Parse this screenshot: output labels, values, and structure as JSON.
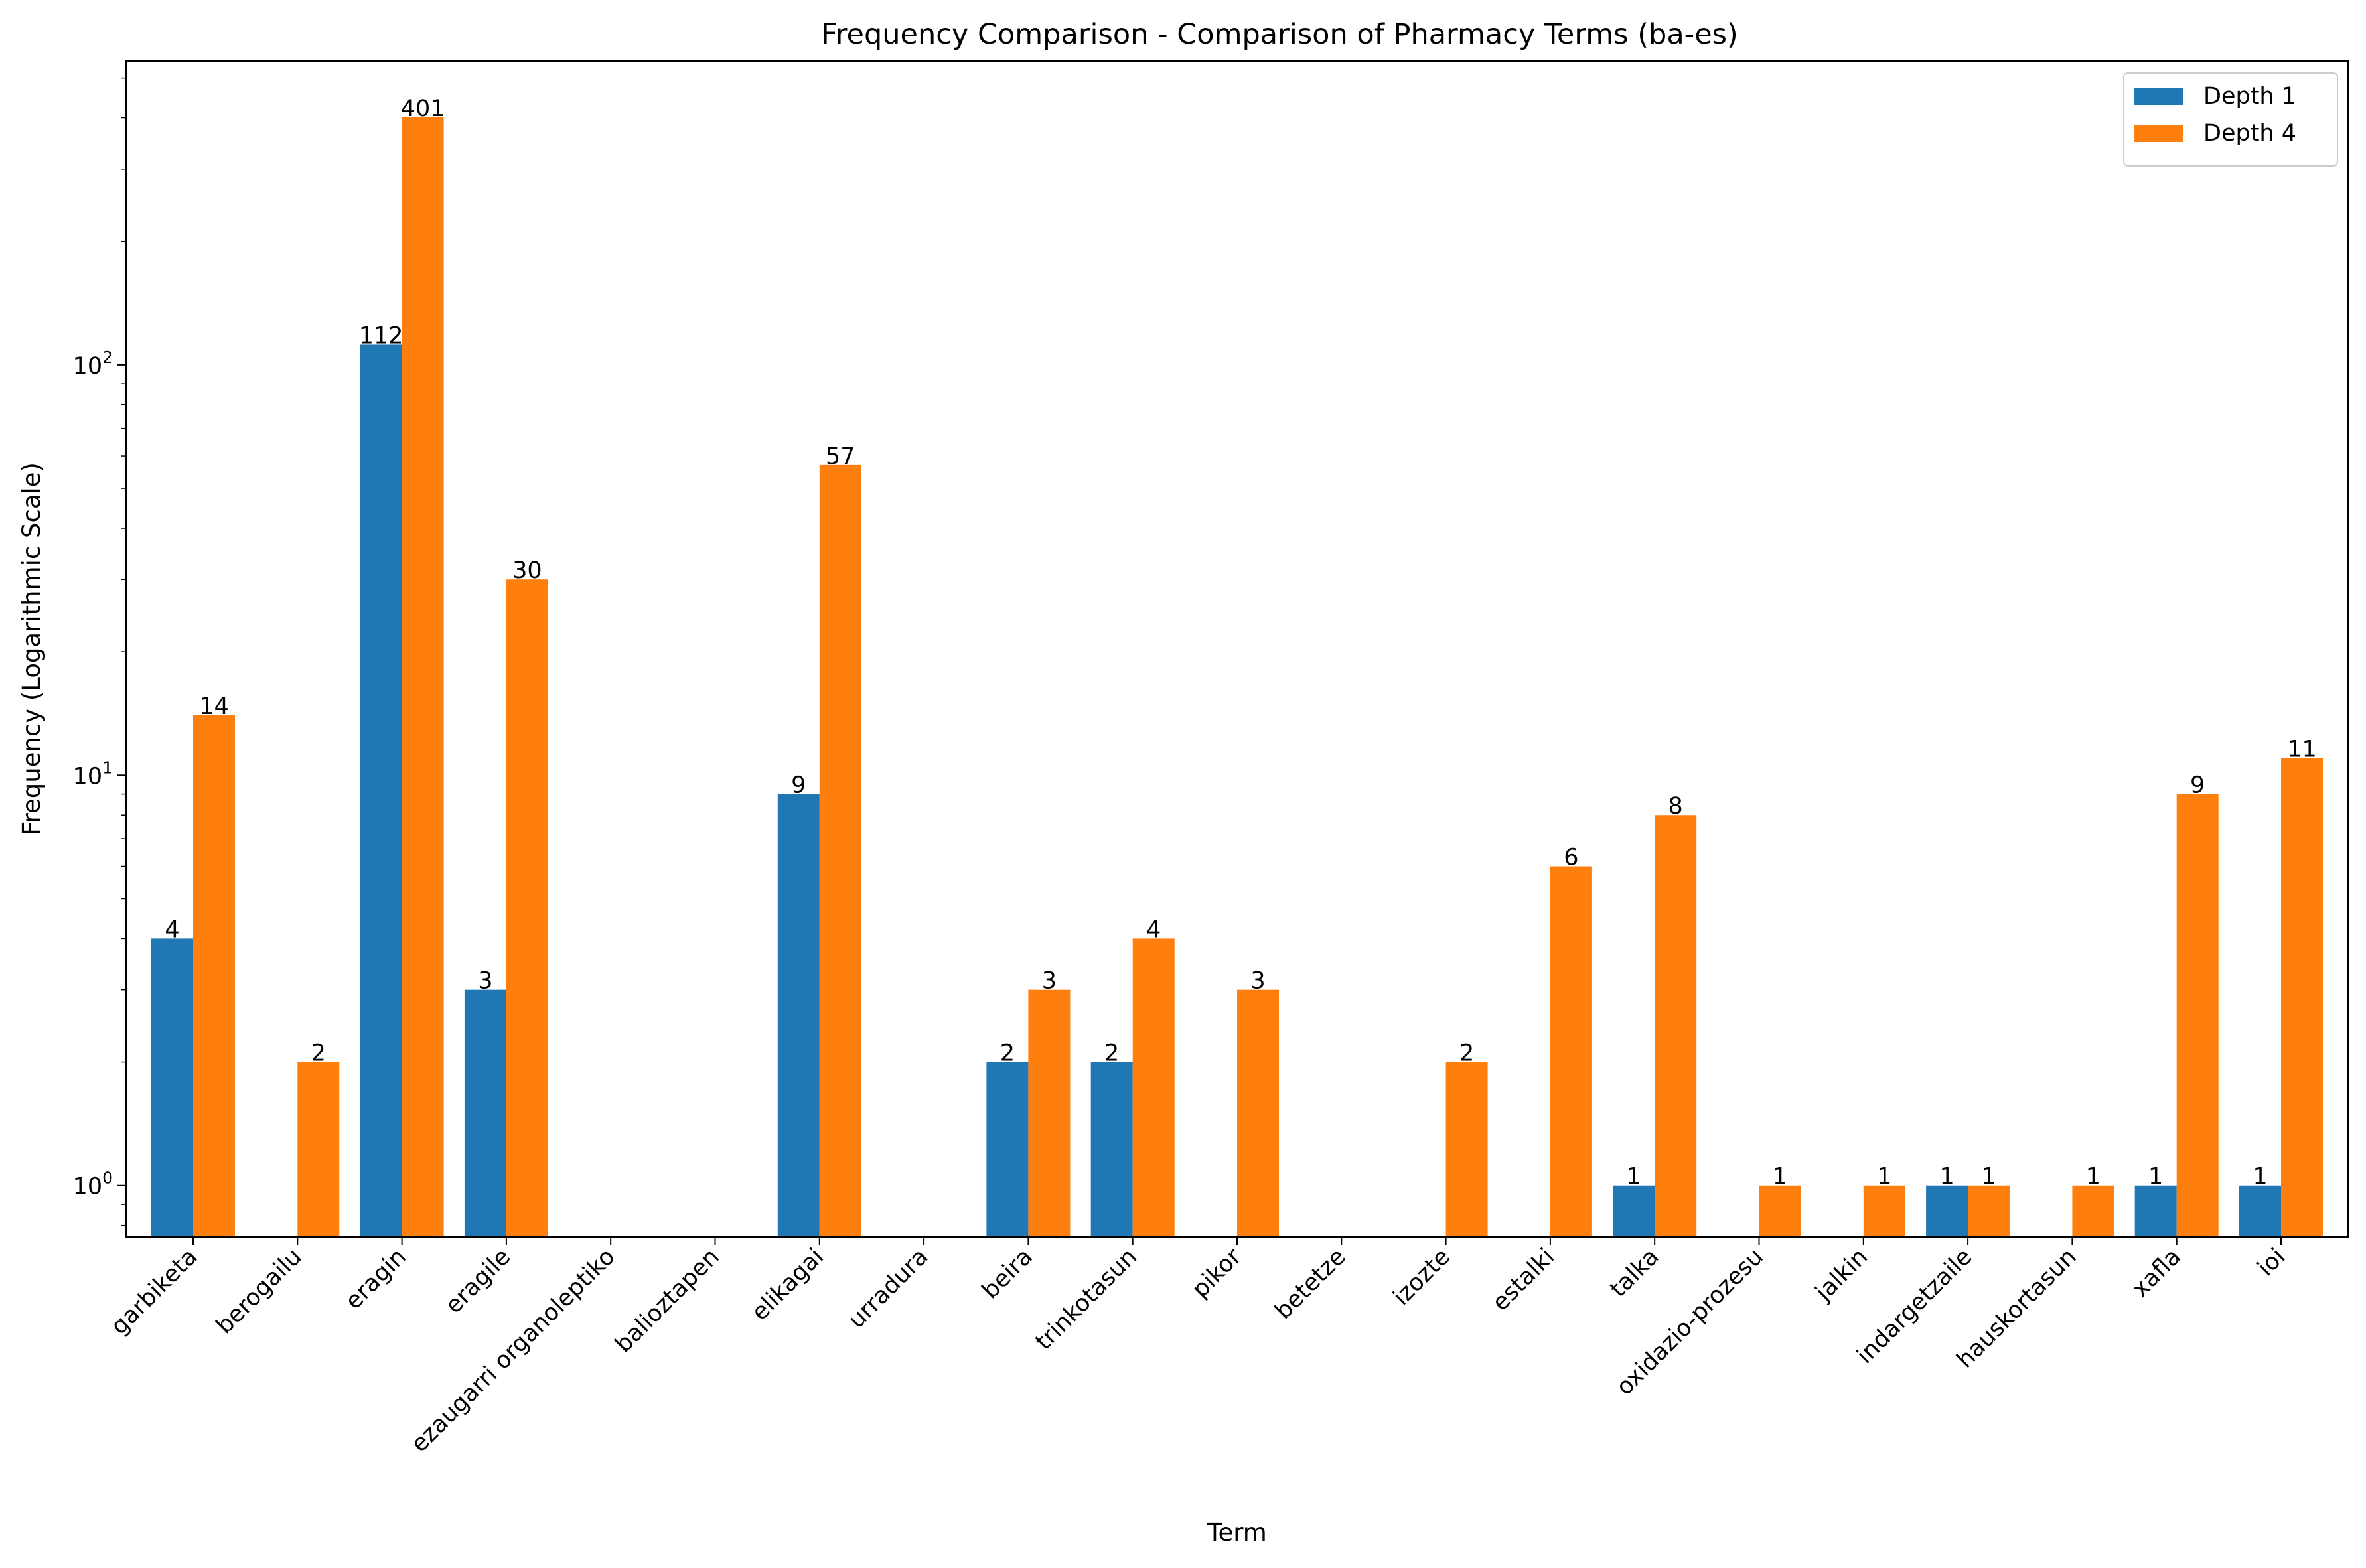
{
  "chart_data": {
    "type": "bar",
    "title": "Frequency Comparison - Comparison of Pharmacy Terms (ba-es)",
    "xlabel": "Term",
    "ylabel": "Frequency (Logarithmic Scale)",
    "yscale": "log",
    "ylim": [
      0.75,
      550
    ],
    "yticks": [
      {
        "value": 1,
        "base": "10",
        "exp": "0"
      },
      {
        "value": 10,
        "base": "10",
        "exp": "1"
      },
      {
        "value": 100,
        "base": "10",
        "exp": "2"
      }
    ],
    "legend_position": "top-right",
    "categories": [
      "garbiketa",
      "berogailu",
      "eragin",
      "eragile",
      "ezaugarri organoleptiko",
      "balioztapen",
      "elikagai",
      "urradura",
      "beira",
      "trinkotasun",
      "pikor",
      "betetze",
      "izozte",
      "estalki",
      "talka",
      "oxidazio-prozesu",
      "jalkin",
      "indargetzaile",
      "hauskortasun",
      "xafla",
      "ioi"
    ],
    "series": [
      {
        "name": "Depth 1",
        "color": "#1f77b4",
        "values": [
          4,
          0,
          112,
          3,
          0,
          0,
          9,
          0,
          2,
          2,
          0,
          0,
          0,
          0,
          1,
          0,
          0,
          1,
          0,
          1,
          1
        ]
      },
      {
        "name": "Depth 4",
        "color": "#ff7f0e",
        "values": [
          14,
          2,
          401,
          30,
          0,
          0,
          57,
          0,
          3,
          4,
          3,
          0,
          2,
          6,
          8,
          1,
          1,
          1,
          1,
          9,
          11
        ]
      }
    ]
  }
}
